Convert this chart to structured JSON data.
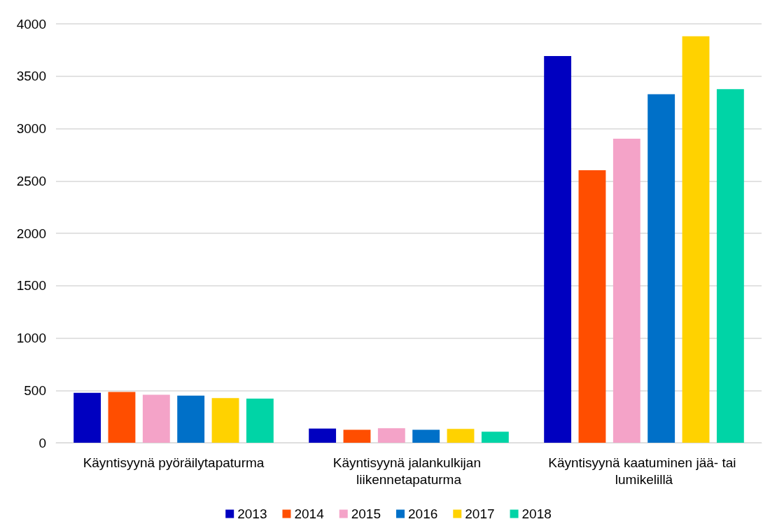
{
  "chart_data": {
    "type": "bar",
    "categories": [
      "Käyntisyynä pyöräilytapaturma",
      "Käyntisyynä jalankulkijan liikennetapaturma",
      "Käyntisyynä kaatuminen jää- tai lumikelillä"
    ],
    "series": [
      {
        "name": "2013",
        "color": "#0000c0",
        "values": [
          476,
          135,
          3693
        ]
      },
      {
        "name": "2014",
        "color": "#ff4e00",
        "values": [
          485,
          124,
          2602
        ]
      },
      {
        "name": "2015",
        "color": "#f4a3c8",
        "values": [
          459,
          138,
          2903
        ]
      },
      {
        "name": "2016",
        "color": "#0070c8",
        "values": [
          450,
          124,
          3327
        ]
      },
      {
        "name": "2017",
        "color": "#ffd200",
        "values": [
          426,
          132,
          3881
        ]
      },
      {
        "name": "2018",
        "color": "#00d4a6",
        "values": [
          421,
          106,
          3377
        ]
      }
    ],
    "ylim": [
      0,
      4000
    ],
    "yticks": [
      0,
      500,
      1000,
      1500,
      2000,
      2500,
      3000,
      3500,
      4000
    ],
    "grid": "y",
    "legend": "bottom"
  }
}
